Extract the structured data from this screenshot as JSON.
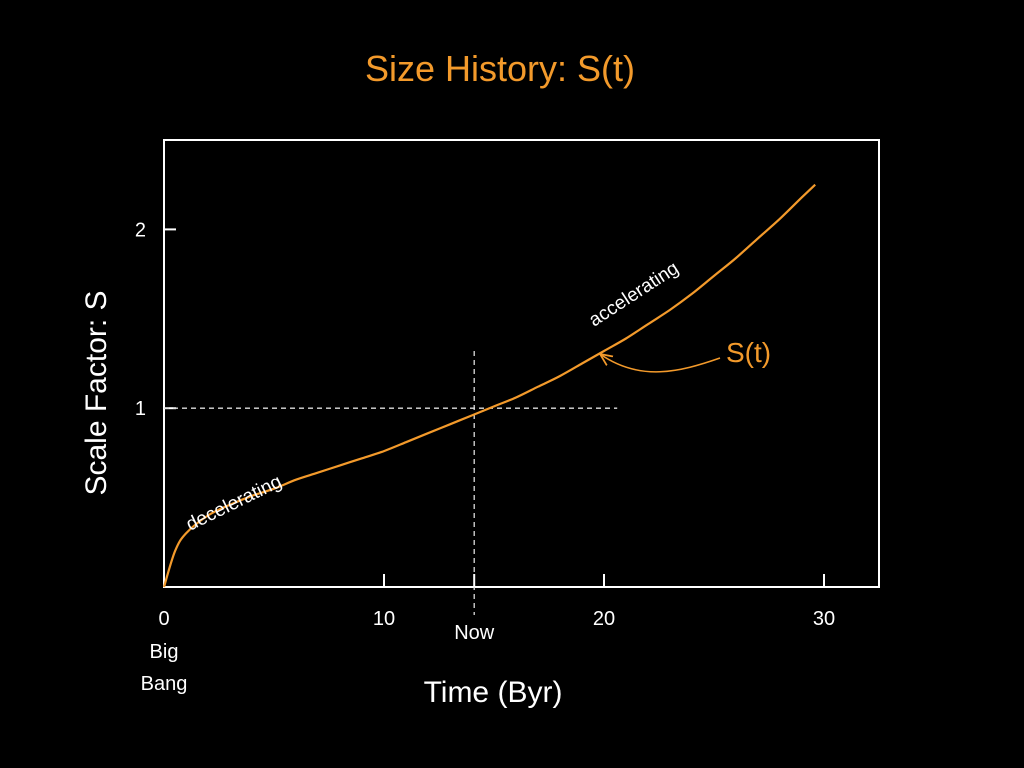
{
  "slide": {
    "title": "Size History: S(t)"
  },
  "chart_data": {
    "type": "line",
    "title": "Size History: S(t)",
    "xlabel": "Time (Byr)",
    "ylabel": "Scale Factor: S",
    "xlim": [
      0,
      32.5
    ],
    "ylim": [
      0,
      2.5
    ],
    "x_ticks": [
      {
        "value": 0,
        "label": "0"
      },
      {
        "value": 10,
        "label": "10"
      },
      {
        "value": 20,
        "label": "20"
      },
      {
        "value": 30,
        "label": "30"
      }
    ],
    "y_ticks": [
      {
        "value": 1,
        "label": "1"
      },
      {
        "value": 2,
        "label": "2"
      }
    ],
    "series": [
      {
        "name": "S(t)",
        "color": "#f39a2b",
        "x": [
          0,
          0.5,
          1,
          2,
          3,
          4,
          5,
          6,
          7,
          8,
          9,
          10,
          11,
          12,
          13,
          14,
          15,
          16,
          17,
          18,
          19,
          20,
          21,
          22,
          23,
          24,
          25,
          26,
          27,
          28,
          29,
          29.6
        ],
        "y": [
          0,
          0.2,
          0.3,
          0.4,
          0.46,
          0.51,
          0.55,
          0.6,
          0.64,
          0.68,
          0.72,
          0.76,
          0.81,
          0.86,
          0.91,
          0.96,
          1.01,
          1.06,
          1.12,
          1.18,
          1.25,
          1.32,
          1.39,
          1.47,
          1.55,
          1.64,
          1.74,
          1.84,
          1.95,
          2.06,
          2.18,
          2.25
        ]
      }
    ],
    "reference_lines": {
      "now_time": 14.1,
      "now_label": "Now",
      "horizontal_value": 1
    },
    "annotations": {
      "origin_note": [
        "Big",
        "Bang"
      ],
      "decelerating": "decelerating",
      "accelerating": "accelerating",
      "curve_label": "S(t)"
    },
    "grid": false,
    "legend": "none"
  }
}
